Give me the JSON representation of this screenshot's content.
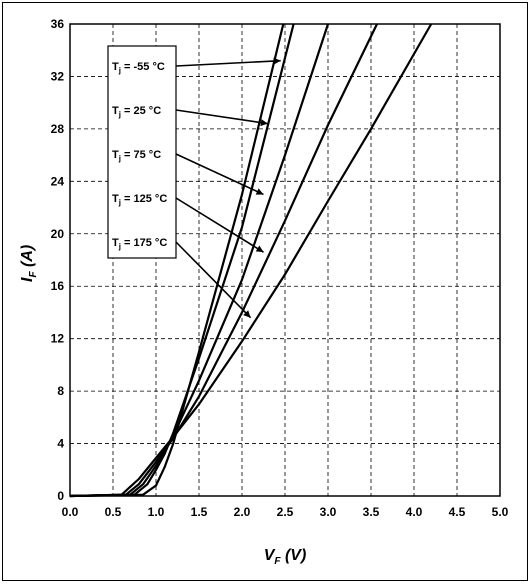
{
  "chart_data": {
    "type": "line",
    "title": "",
    "xlabel": {
      "main": "V",
      "sub": "F",
      "unit": " (V)"
    },
    "ylabel": {
      "main": "I",
      "sub": "F",
      "unit": " (A)"
    },
    "xlim": [
      0,
      5
    ],
    "ylim": [
      0,
      36
    ],
    "xticks": [
      "0.0",
      "0.5",
      "1.0",
      "1.5",
      "2.0",
      "2.5",
      "3.0",
      "3.5",
      "4.0",
      "4.5",
      "5.0"
    ],
    "yticks": [
      "0",
      "4",
      "8",
      "12",
      "16",
      "20",
      "24",
      "28",
      "32",
      "36"
    ],
    "grid": true,
    "legend_position": "top-left",
    "series": [
      {
        "name": "-55 °C",
        "x": [
          0,
          0.85,
          1.0,
          1.1,
          1.2,
          1.5,
          2.0,
          2.48
        ],
        "y": [
          0,
          0.1,
          0.8,
          2.2,
          4.0,
          11.0,
          23.0,
          36.0
        ]
      },
      {
        "name": "25 °C",
        "x": [
          0,
          0.75,
          0.9,
          1.0,
          1.1,
          1.2,
          1.5,
          2.0,
          2.6
        ],
        "y": [
          0,
          0.1,
          0.9,
          2.0,
          3.2,
          4.8,
          10.5,
          20.5,
          36.0
        ]
      },
      {
        "name": "75 °C",
        "x": [
          0,
          0.7,
          0.85,
          1.0,
          1.1,
          1.2,
          1.5,
          2.0,
          2.5,
          3.0
        ],
        "y": [
          0,
          0.1,
          0.9,
          2.3,
          3.4,
          4.6,
          8.8,
          16.5,
          26.0,
          36.0
        ]
      },
      {
        "name": "125 °C",
        "x": [
          0,
          0.65,
          0.8,
          1.0,
          1.2,
          1.5,
          2.0,
          2.5,
          3.0,
          3.57
        ],
        "y": [
          0,
          0.1,
          0.9,
          2.6,
          4.4,
          7.6,
          14.0,
          21.0,
          28.3,
          36.0
        ]
      },
      {
        "name": "175 °C",
        "x": [
          0,
          0.6,
          0.8,
          1.0,
          1.2,
          1.5,
          2.0,
          2.5,
          3.0,
          3.5,
          4.2
        ],
        "y": [
          0,
          0.1,
          1.3,
          2.9,
          4.5,
          7.0,
          11.8,
          16.9,
          22.5,
          28.0,
          36.0
        ]
      }
    ],
    "legend_labels": [
      {
        "prefix": "T",
        "sub": "j",
        "text": " = -55 °C"
      },
      {
        "prefix": "T",
        "sub": "j",
        "text": " = 25 °C"
      },
      {
        "prefix": "T",
        "sub": "j",
        "text": " = 75 °C"
      },
      {
        "prefix": "T",
        "sub": "j",
        "text": " = 125 °C"
      },
      {
        "prefix": "T",
        "sub": "j",
        "text": " = 175 °C"
      }
    ],
    "annotation_targets": [
      {
        "x": 2.45,
        "y": 33.2
      },
      {
        "x": 2.3,
        "y": 28.4
      },
      {
        "x": 2.25,
        "y": 23.0
      },
      {
        "x": 2.25,
        "y": 18.6
      },
      {
        "x": 2.1,
        "y": 13.6
      }
    ]
  }
}
